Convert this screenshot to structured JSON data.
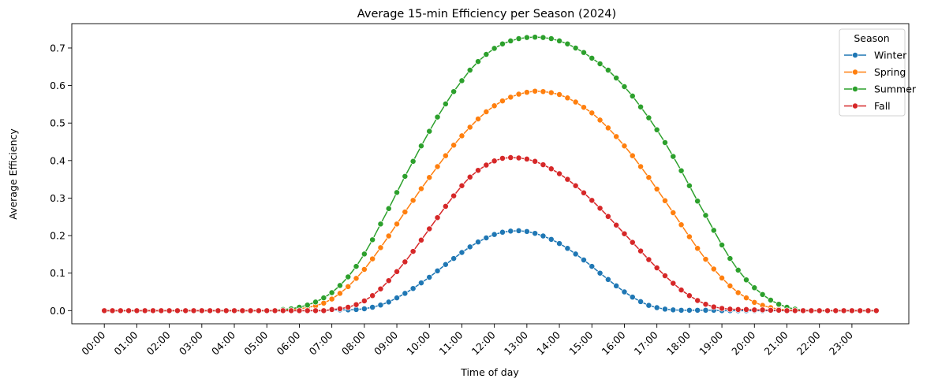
{
  "chart_data": {
    "type": "line",
    "title": "Average 15-min Efficiency per Season (2024)",
    "xlabel": "Time of day",
    "ylabel": "Average Efficiency",
    "xlim": [
      "-01:00",
      "24:45"
    ],
    "ylim": [
      -0.035,
      0.765
    ],
    "x_ticks": [
      "00:00",
      "01:00",
      "02:00",
      "03:00",
      "04:00",
      "05:00",
      "06:00",
      "07:00",
      "08:00",
      "09:00",
      "10:00",
      "11:00",
      "12:00",
      "13:00",
      "14:00",
      "15:00",
      "16:00",
      "17:00",
      "18:00",
      "19:00",
      "20:00",
      "21:00",
      "22:00",
      "23:00"
    ],
    "y_ticks": [
      0.0,
      0.1,
      0.2,
      0.3,
      0.4,
      0.5,
      0.6,
      0.7
    ],
    "y_tick_labels": [
      "0.0",
      "0.1",
      "0.2",
      "0.3",
      "0.4",
      "0.5",
      "0.6",
      "0.7"
    ],
    "x_interval": "15 min",
    "grid": false,
    "marker": "circle",
    "legend": {
      "title": "Season",
      "position": "top-right"
    },
    "series": [
      {
        "name": "Winter",
        "color": "#1f77b4",
        "values": [
          0,
          0,
          0,
          0,
          0,
          0,
          0,
          0,
          0,
          0,
          0,
          0,
          0,
          0,
          0,
          0,
          0,
          0,
          0,
          0,
          0,
          0,
          0,
          0,
          0,
          0,
          0,
          0,
          0.002,
          0.002,
          0.002,
          0.003,
          0.005,
          0.009,
          0.015,
          0.023,
          0.034,
          0.046,
          0.059,
          0.074,
          0.089,
          0.106,
          0.123,
          0.139,
          0.155,
          0.17,
          0.183,
          0.194,
          0.203,
          0.209,
          0.212,
          0.213,
          0.211,
          0.206,
          0.199,
          0.19,
          0.179,
          0.166,
          0.151,
          0.135,
          0.118,
          0.1,
          0.083,
          0.066,
          0.05,
          0.036,
          0.024,
          0.014,
          0.008,
          0.004,
          0.002,
          0.001,
          0.001,
          0.001,
          0.001,
          0.001,
          0,
          0,
          0,
          0,
          0,
          0,
          0,
          0,
          0,
          0,
          0,
          0,
          0,
          0,
          0,
          0,
          0,
          0,
          0,
          0
        ]
      },
      {
        "name": "Spring",
        "color": "#ff7f0e",
        "values": [
          0,
          0,
          0,
          0,
          0,
          0,
          0,
          0,
          0,
          0,
          0,
          0,
          0,
          0,
          0,
          0,
          0,
          0,
          0,
          0,
          0,
          0,
          0,
          0.003,
          0.005,
          0.008,
          0.013,
          0.02,
          0.031,
          0.046,
          0.064,
          0.086,
          0.11,
          0.138,
          0.168,
          0.199,
          0.231,
          0.263,
          0.294,
          0.325,
          0.355,
          0.384,
          0.413,
          0.441,
          0.466,
          0.489,
          0.511,
          0.53,
          0.546,
          0.559,
          0.569,
          0.577,
          0.582,
          0.585,
          0.584,
          0.581,
          0.576,
          0.567,
          0.556,
          0.542,
          0.527,
          0.508,
          0.487,
          0.464,
          0.439,
          0.413,
          0.384,
          0.355,
          0.324,
          0.293,
          0.261,
          0.229,
          0.197,
          0.166,
          0.137,
          0.111,
          0.087,
          0.066,
          0.048,
          0.034,
          0.022,
          0.014,
          0.008,
          0.004,
          0.002,
          0.001,
          0,
          0,
          0,
          0,
          0,
          0,
          0,
          0,
          0,
          0
        ]
      },
      {
        "name": "Summer",
        "color": "#2ca02c",
        "values": [
          0,
          0,
          0,
          0,
          0,
          0,
          0,
          0,
          0,
          0,
          0,
          0,
          0,
          0,
          0,
          0,
          0,
          0,
          0,
          0,
          0,
          0,
          0.003,
          0.005,
          0.009,
          0.015,
          0.023,
          0.034,
          0.048,
          0.067,
          0.09,
          0.118,
          0.151,
          0.189,
          0.231,
          0.272,
          0.315,
          0.358,
          0.398,
          0.439,
          0.478,
          0.516,
          0.551,
          0.584,
          0.613,
          0.641,
          0.664,
          0.683,
          0.699,
          0.711,
          0.719,
          0.725,
          0.728,
          0.729,
          0.728,
          0.725,
          0.719,
          0.711,
          0.7,
          0.688,
          0.673,
          0.658,
          0.641,
          0.62,
          0.597,
          0.572,
          0.543,
          0.514,
          0.482,
          0.448,
          0.411,
          0.373,
          0.333,
          0.292,
          0.254,
          0.214,
          0.175,
          0.139,
          0.108,
          0.082,
          0.061,
          0.043,
          0.028,
          0.017,
          0.009,
          0.004,
          0.001,
          0,
          0,
          0,
          0,
          0,
          0,
          0,
          0,
          0
        ]
      },
      {
        "name": "Fall",
        "color": "#d62728",
        "values": [
          0,
          0,
          0,
          0,
          0,
          0,
          0,
          0,
          0,
          0,
          0,
          0,
          0,
          0,
          0,
          0,
          0,
          0,
          0,
          0,
          0,
          0,
          0,
          0,
          0,
          0,
          0,
          0,
          0.003,
          0.005,
          0.009,
          0.016,
          0.026,
          0.04,
          0.058,
          0.08,
          0.104,
          0.13,
          0.158,
          0.188,
          0.218,
          0.248,
          0.278,
          0.306,
          0.333,
          0.356,
          0.374,
          0.388,
          0.399,
          0.406,
          0.408,
          0.407,
          0.404,
          0.398,
          0.389,
          0.378,
          0.365,
          0.35,
          0.333,
          0.314,
          0.294,
          0.273,
          0.251,
          0.228,
          0.205,
          0.182,
          0.159,
          0.136,
          0.114,
          0.093,
          0.073,
          0.055,
          0.04,
          0.027,
          0.017,
          0.01,
          0.006,
          0.004,
          0.003,
          0.003,
          0.002,
          0.002,
          0.001,
          0.001,
          0,
          0,
          0,
          0,
          0,
          0,
          0,
          0,
          0,
          0,
          0,
          0
        ]
      }
    ]
  }
}
